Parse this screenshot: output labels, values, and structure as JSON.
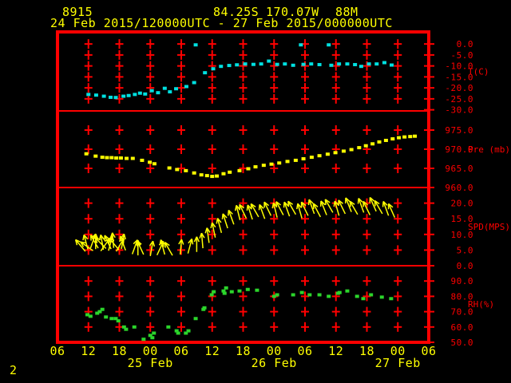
{
  "header": {
    "station_id": "8915",
    "latitude": "84.25S",
    "longitude": "170.07W",
    "elevation": "88M",
    "time_range": "24 Feb 2015/120000UTC - 27 Feb 2015/000000UTC"
  },
  "page_number": "2",
  "colors": {
    "background": "#000000",
    "frame_red": "#ff0000",
    "label_yellow": "#ffff00",
    "temperature": "#00e0e0",
    "pressure": "#ffff00",
    "wind": "#ffff00",
    "humidity": "#2bd52b"
  },
  "x_axis": {
    "tick_labels": [
      "06",
      "12",
      "18",
      "00",
      "06",
      "12",
      "18",
      "00",
      "06",
      "12",
      "18",
      "00",
      "06"
    ],
    "tick_interval_hours": 6,
    "start_hour_offset": 0,
    "total_hours": 72,
    "date_labels": [
      {
        "text": "25 Feb",
        "hour": 18
      },
      {
        "text": "26 Feb",
        "hour": 42
      },
      {
        "text": "27 Feb",
        "hour": 66
      }
    ]
  },
  "chart_data": [
    {
      "type": "scatter",
      "name": "temperature",
      "ylabel": "T(C)",
      "ylim": [
        5.5,
        -30.5
      ],
      "yticks": [
        0,
        -5,
        -10,
        -15,
        -20,
        -25,
        -30
      ],
      "grid_rows": [
        0,
        -5,
        -10,
        -15,
        -20,
        -25
      ],
      "points": [
        [
          6,
          -23.0
        ],
        [
          7.5,
          -23.3
        ],
        [
          9,
          -23.8
        ],
        [
          10.3,
          -24.3
        ],
        [
          11.3,
          -24.4
        ],
        [
          12.8,
          -23.8
        ],
        [
          13.8,
          -23.5
        ],
        [
          15,
          -23.0
        ],
        [
          16,
          -22.4
        ],
        [
          17,
          -22.8
        ],
        [
          18.3,
          -21.3
        ],
        [
          19.5,
          -22.2
        ],
        [
          20.8,
          -20.2
        ],
        [
          21.8,
          -21.8
        ],
        [
          23,
          -20.4
        ],
        [
          25,
          -19.4
        ],
        [
          26.5,
          -17.6
        ],
        [
          26.8,
          -0.4
        ],
        [
          28.6,
          -13.1
        ],
        [
          30.2,
          -11.3
        ],
        [
          31.7,
          -10.2
        ],
        [
          33.3,
          -9.8
        ],
        [
          34.8,
          -9.5
        ],
        [
          36.4,
          -9.1
        ],
        [
          38,
          -9.3
        ],
        [
          39.5,
          -9.1
        ],
        [
          41,
          -7.8
        ],
        [
          42.6,
          -9.3
        ],
        [
          44.1,
          -9.1
        ],
        [
          45.7,
          -9.7
        ],
        [
          47.2,
          -0.4
        ],
        [
          47.7,
          -9.3
        ],
        [
          49.2,
          -9.1
        ],
        [
          50.8,
          -9.4
        ],
        [
          52.6,
          -0.4
        ],
        [
          53.1,
          -9.7
        ],
        [
          54.6,
          -9.1
        ],
        [
          56.2,
          -9.1
        ],
        [
          57.7,
          -9.4
        ],
        [
          58.9,
          -10.2
        ],
        [
          60.4,
          -9.1
        ],
        [
          61.9,
          -9.1
        ],
        [
          63.4,
          -8.5
        ],
        [
          64.8,
          -9.6
        ]
      ]
    },
    {
      "type": "scatter",
      "name": "pressure",
      "ylabel": "Pre (mb)",
      "ylim": [
        980,
        960
      ],
      "yticks": [
        975,
        970,
        965,
        960
      ],
      "grid_rows": [
        975,
        970,
        965
      ],
      "points": [
        [
          5.6,
          968.8
        ],
        [
          7.4,
          968.2
        ],
        [
          8.7,
          967.9
        ],
        [
          9.6,
          967.8
        ],
        [
          10.5,
          967.8
        ],
        [
          11.4,
          967.7
        ],
        [
          12.3,
          967.7
        ],
        [
          13.4,
          967.6
        ],
        [
          14.6,
          967.6
        ],
        [
          16.4,
          967.1
        ],
        [
          17.9,
          966.6
        ],
        [
          18.8,
          966.2
        ],
        [
          21.7,
          965.1
        ],
        [
          23.2,
          964.7
        ],
        [
          24.9,
          964.4
        ],
        [
          26.5,
          963.8
        ],
        [
          27.9,
          963.3
        ],
        [
          29,
          963.1
        ],
        [
          30,
          962.9
        ],
        [
          30.9,
          963.0
        ],
        [
          32.2,
          963.6
        ],
        [
          33.4,
          964.0
        ],
        [
          35.3,
          964.4
        ],
        [
          37,
          964.9
        ],
        [
          38.4,
          965.4
        ],
        [
          40,
          965.8
        ],
        [
          41.5,
          966.1
        ],
        [
          43,
          966.4
        ],
        [
          44.6,
          966.8
        ],
        [
          46.2,
          967.1
        ],
        [
          47.7,
          967.5
        ],
        [
          49.3,
          967.9
        ],
        [
          50.8,
          968.3
        ],
        [
          52.4,
          968.7
        ],
        [
          53.9,
          969.1
        ],
        [
          55.5,
          969.5
        ],
        [
          57,
          969.9
        ],
        [
          58.5,
          970.4
        ],
        [
          59.8,
          970.9
        ],
        [
          61.1,
          971.4
        ],
        [
          62.4,
          971.9
        ],
        [
          63.7,
          972.3
        ],
        [
          65,
          972.7
        ],
        [
          66.2,
          973.0
        ],
        [
          67.3,
          973.2
        ],
        [
          68.4,
          973.3
        ],
        [
          69.3,
          973.4
        ]
      ]
    },
    {
      "type": "wind-vectors",
      "name": "wind-speed",
      "ylabel": "SPD(MPS)",
      "ylim": [
        25,
        0
      ],
      "yticks": [
        20,
        15,
        10,
        5,
        0
      ],
      "grid_rows": [
        20,
        15,
        10,
        5
      ],
      "points_format": [
        "hour",
        "speed_mps",
        "direction_deg_from_up"
      ],
      "points": [
        [
          5.4,
          4.6,
          -40
        ],
        [
          5.9,
          5.2,
          -15
        ],
        [
          6.4,
          5.6,
          20
        ],
        [
          6.9,
          4.8,
          -55
        ],
        [
          7.4,
          5.3,
          0
        ],
        [
          7.9,
          5.6,
          -30
        ],
        [
          8.4,
          4.7,
          35
        ],
        [
          8.9,
          5.1,
          -10
        ],
        [
          9.4,
          5.5,
          -45
        ],
        [
          9.9,
          4.8,
          15
        ],
        [
          10.4,
          5.3,
          -25
        ],
        [
          10.9,
          5.7,
          -5
        ],
        [
          11.4,
          4.6,
          30
        ],
        [
          11.9,
          5.1,
          -40
        ],
        [
          12.4,
          5.4,
          10
        ],
        [
          13.2,
          4.9,
          -20
        ],
        [
          14.5,
          3.7,
          20
        ],
        [
          15.6,
          3.3,
          0
        ],
        [
          16.7,
          3.6,
          -25
        ],
        [
          18,
          3.1,
          10
        ],
        [
          19.3,
          3.4,
          25
        ],
        [
          20.8,
          3.6,
          -15
        ],
        [
          22.3,
          3.3,
          -30
        ],
        [
          23.8,
          3.6,
          5
        ],
        [
          25.3,
          3.9,
          15
        ],
        [
          27,
          4.4,
          0
        ],
        [
          28.2,
          5.6,
          -5
        ],
        [
          29.4,
          7.3,
          -8
        ],
        [
          30.6,
          9,
          -12
        ],
        [
          31.8,
          10.5,
          -15
        ],
        [
          33,
          12,
          -18
        ],
        [
          34.2,
          13.2,
          -20
        ],
        [
          35.4,
          14.6,
          -14
        ],
        [
          36.6,
          15.2,
          -26
        ],
        [
          37.8,
          14.8,
          -18
        ],
        [
          39,
          15.6,
          -30
        ],
        [
          40.2,
          15,
          -20
        ],
        [
          41.4,
          16,
          -26
        ],
        [
          42.6,
          15.4,
          -14
        ],
        [
          43.8,
          16.2,
          -28
        ],
        [
          45,
          15.8,
          -20
        ],
        [
          46.2,
          16.4,
          -30
        ],
        [
          47.4,
          15.2,
          -16
        ],
        [
          48.6,
          16,
          -26
        ],
        [
          49.8,
          16.6,
          -20
        ],
        [
          51,
          15.6,
          -28
        ],
        [
          52.2,
          16.2,
          -22
        ],
        [
          53.4,
          17,
          -30
        ],
        [
          54.6,
          16,
          -16
        ],
        [
          55.8,
          16.6,
          -26
        ],
        [
          57,
          17.2,
          -22
        ],
        [
          58.2,
          16.4,
          -30
        ],
        [
          59.4,
          17,
          -20
        ],
        [
          60.6,
          16.2,
          -26
        ],
        [
          61.8,
          17.4,
          -24
        ],
        [
          63,
          16.6,
          -30
        ],
        [
          64.2,
          16,
          -20
        ],
        [
          65.4,
          15.4,
          -24
        ]
      ]
    },
    {
      "type": "scatter",
      "name": "relative-humidity",
      "ylabel": "RH(%)",
      "ylim": [
        100,
        50
      ],
      "yticks": [
        90,
        80,
        70,
        60,
        50
      ],
      "grid_rows": [
        90,
        80,
        70,
        60
      ],
      "points": [
        [
          5.8,
          68
        ],
        [
          6.4,
          67
        ],
        [
          7.7,
          69
        ],
        [
          8.2,
          70
        ],
        [
          8.7,
          71.5
        ],
        [
          9.4,
          66.5
        ],
        [
          10.5,
          65.5
        ],
        [
          11.3,
          65.5
        ],
        [
          11.8,
          64
        ],
        [
          12.9,
          60
        ],
        [
          13.3,
          58.5
        ],
        [
          14.9,
          60
        ],
        [
          16.7,
          52
        ],
        [
          18,
          54.5
        ],
        [
          18.4,
          53
        ],
        [
          18.7,
          56
        ],
        [
          21.5,
          60
        ],
        [
          23.1,
          57.5
        ],
        [
          23.4,
          56
        ],
        [
          24.9,
          56
        ],
        [
          25.4,
          57.5
        ],
        [
          26.8,
          65.5
        ],
        [
          28.3,
          71.5
        ],
        [
          28.5,
          72.5
        ],
        [
          29.9,
          81
        ],
        [
          30.3,
          83
        ],
        [
          32.2,
          83.5
        ],
        [
          32.4,
          82
        ],
        [
          32.7,
          85.5
        ],
        [
          33.8,
          83
        ],
        [
          35.3,
          83.5
        ],
        [
          36.9,
          84.5
        ],
        [
          38.7,
          84
        ],
        [
          42,
          80
        ],
        [
          42.6,
          81
        ],
        [
          45.7,
          81
        ],
        [
          47.4,
          82.5
        ],
        [
          48.9,
          81
        ],
        [
          50.8,
          81
        ],
        [
          52.6,
          80
        ],
        [
          54.4,
          82
        ],
        [
          54.7,
          82.5
        ],
        [
          56.2,
          83.5
        ],
        [
          58.1,
          80
        ],
        [
          59.3,
          78.5
        ],
        [
          60.8,
          81
        ],
        [
          62.9,
          79.5
        ],
        [
          64.7,
          78.5
        ]
      ]
    }
  ]
}
